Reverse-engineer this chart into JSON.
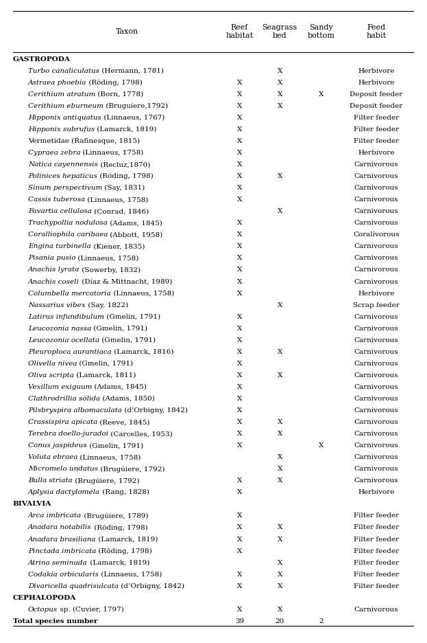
{
  "col_headers": [
    "Taxon",
    "Reef\nhabitat",
    "Seagrass\nbed",
    "Sandy\nbottom",
    "Feed\nhabit"
  ],
  "rows": [
    {
      "taxon": "GASTROPODA",
      "reef": "",
      "seagrass": "",
      "sandy": "",
      "feed": "",
      "section_header": true,
      "italic_part": "",
      "bold": true,
      "total_row": false
    },
    {
      "taxon": "Turbo canaliculatus (Hermann, 1781)",
      "italic_part": "Turbo canaliculatus",
      "bold": false,
      "reef": "",
      "seagrass": "X",
      "sandy": "",
      "feed": "Herbivore",
      "section_header": false,
      "total_row": false
    },
    {
      "taxon": "Astraea phoebia (Röding, 1798)",
      "italic_part": "Astraea phoebia",
      "bold": false,
      "reef": "X",
      "seagrass": "X",
      "sandy": "",
      "feed": "Herbivore",
      "section_header": false,
      "total_row": false
    },
    {
      "taxon": "Cerithium atratum (Born, 1778)",
      "italic_part": "Cerithium atratum",
      "bold": false,
      "reef": "X",
      "seagrass": "X",
      "sandy": "X",
      "feed": "Deposit feeder",
      "section_header": false,
      "total_row": false
    },
    {
      "taxon": "Cerithium eburneum (Bruguiere,1792)",
      "italic_part": "Cerithium eburneum",
      "bold": false,
      "reef": "X",
      "seagrass": "X",
      "sandy": "",
      "feed": "Deposit feeder",
      "section_header": false,
      "total_row": false
    },
    {
      "taxon": "Hipponix antiquatus (Linnaeus, 1767)",
      "italic_part": "Hipponix antiquatus",
      "bold": false,
      "reef": "X",
      "seagrass": "",
      "sandy": "",
      "feed": "Filter feeder",
      "section_header": false,
      "total_row": false
    },
    {
      "taxon": "Hipponix subrufus (Lamarck, 1819)",
      "italic_part": "Hipponix subrufus",
      "bold": false,
      "reef": "X",
      "seagrass": "",
      "sandy": "",
      "feed": "Filter feeder",
      "section_header": false,
      "total_row": false
    },
    {
      "taxon": "Vermetidae (Rafinesque, 1815)",
      "italic_part": "",
      "bold": false,
      "reef": "X",
      "seagrass": "",
      "sandy": "",
      "feed": "Filter feeder",
      "section_header": false,
      "total_row": false
    },
    {
      "taxon": "Cypraea zebra (Linnaeus, 1758)",
      "italic_part": "Cypraea zebra",
      "bold": false,
      "reef": "X",
      "seagrass": "",
      "sandy": "",
      "feed": "Herbivore",
      "section_header": false,
      "total_row": false
    },
    {
      "taxon": "Natica cayennensis (Recluz,1870)",
      "italic_part": "Natica cayennensis",
      "bold": false,
      "reef": "X",
      "seagrass": "",
      "sandy": "",
      "feed": "Carnivorous",
      "section_header": false,
      "total_row": false
    },
    {
      "taxon": "Polinices hepaticus (Roding, 1798)",
      "italic_part": "Polinices hepaticus",
      "bold": false,
      "reef": "X",
      "seagrass": "X",
      "sandy": "",
      "feed": "Carnivorous",
      "section_header": false,
      "total_row": false
    },
    {
      "taxon": "Sinum perspectivum (Say, 1831)",
      "italic_part": "Sinum perspectivum",
      "bold": false,
      "reef": "X",
      "seagrass": "",
      "sandy": "",
      "feed": "Carnivorous",
      "section_header": false,
      "total_row": false
    },
    {
      "taxon": "Cassis tuberosa (Linnaeus, 1758)",
      "italic_part": "Cassis tuberosa",
      "bold": false,
      "reef": "X",
      "seagrass": "",
      "sandy": "",
      "feed": "Carnivorous",
      "section_header": false,
      "total_row": false
    },
    {
      "taxon": "Favartia cellulosa (Conrad, 1846)",
      "italic_part": "Favartia cellulosa",
      "bold": false,
      "reef": "",
      "seagrass": "X",
      "sandy": "",
      "feed": "Carnivorous",
      "section_header": false,
      "total_row": false
    },
    {
      "taxon": "Trachypollia nodulosa (Adams, 1845)",
      "italic_part": "Trachypollia nodulosa",
      "bold": false,
      "reef": "X",
      "seagrass": "",
      "sandy": "",
      "feed": "Carnivorous",
      "section_header": false,
      "total_row": false
    },
    {
      "taxon": "Coralliophila caribaea (Abbott, 1958)",
      "italic_part": "Coralliophila caribaea",
      "bold": false,
      "reef": "X",
      "seagrass": "",
      "sandy": "",
      "feed": "Coralivorous",
      "section_header": false,
      "total_row": false
    },
    {
      "taxon": "Engina turbinella (Kiener, 1835)",
      "italic_part": "Engina turbinella",
      "bold": false,
      "reef": "X",
      "seagrass": "",
      "sandy": "",
      "feed": "Carnivorous",
      "section_header": false,
      "total_row": false
    },
    {
      "taxon": "Pisania pusio (Linnaeus, 1758)",
      "italic_part": "Pisania pusio",
      "bold": false,
      "reef": "X",
      "seagrass": "",
      "sandy": "",
      "feed": "Carnivorous",
      "section_header": false,
      "total_row": false
    },
    {
      "taxon": "Anachis lyrata (Sowerby, 1832)",
      "italic_part": "Anachis lyrata",
      "bold": false,
      "reef": "X",
      "seagrass": "",
      "sandy": "",
      "feed": "Carnivorous",
      "section_header": false,
      "total_row": false
    },
    {
      "taxon": "Anachis coseli (Díaz & Mittnacht, 1989)",
      "italic_part": "Anachis coseli",
      "bold": false,
      "reef": "X",
      "seagrass": "",
      "sandy": "",
      "feed": "Carnivorous",
      "section_header": false,
      "total_row": false
    },
    {
      "taxon": "Columbella mercatoria (Linnaeus, 1758)",
      "italic_part": "Columbella mercatoria",
      "bold": false,
      "reef": "X",
      "seagrass": "",
      "sandy": "",
      "feed": "Herbivore",
      "section_header": false,
      "total_row": false
    },
    {
      "taxon": "Nassarius vibex (Say, 1822)",
      "italic_part": "Nassarius vibex",
      "bold": false,
      "reef": "",
      "seagrass": "X",
      "sandy": "",
      "feed": "Scrap feeder",
      "section_header": false,
      "total_row": false
    },
    {
      "taxon": "Latirus infundibulum (Gmelin, 1791)",
      "italic_part": "Latirus infundibulum",
      "bold": false,
      "reef": "X",
      "seagrass": "",
      "sandy": "",
      "feed": "Carnivorous",
      "section_header": false,
      "total_row": false
    },
    {
      "taxon": "Leucozonia nassa (Gmelin, 1791)",
      "italic_part": "Leucozonia nassa",
      "bold": false,
      "reef": "X",
      "seagrass": "",
      "sandy": "",
      "feed": "Carnivorous",
      "section_header": false,
      "total_row": false
    },
    {
      "taxon": "Leucozonia ocellata (Gmelin, 1791)",
      "italic_part": "Leucozonia ocellata",
      "bold": false,
      "reef": "X",
      "seagrass": "",
      "sandy": "",
      "feed": "Carnivorous",
      "section_header": false,
      "total_row": false
    },
    {
      "taxon": "Pleuroploca aurantiaca (Lamarck, 1816)",
      "italic_part": "Pleuroploca aurantiaca",
      "bold": false,
      "reef": "X",
      "seagrass": "X",
      "sandy": "",
      "feed": "Carnivorous",
      "section_header": false,
      "total_row": false
    },
    {
      "taxon": "Olivella nivea (Gmelin, 1791)",
      "italic_part": "Olivella nivea",
      "bold": false,
      "reef": "X",
      "seagrass": "",
      "sandy": "",
      "feed": "Carnivorous",
      "section_header": false,
      "total_row": false
    },
    {
      "taxon": "Oliva scripta (Lamarck, 1811)",
      "italic_part": "Oliva scripta",
      "bold": false,
      "reef": "X",
      "seagrass": "X",
      "sandy": "",
      "feed": "Carnivorous",
      "section_header": false,
      "total_row": false
    },
    {
      "taxon": "Vexillum exiguum (Adams, 1845)",
      "italic_part": "Vexillum exiguum",
      "bold": false,
      "reef": "X",
      "seagrass": "",
      "sandy": "",
      "feed": "Carnivorous",
      "section_header": false,
      "total_row": false
    },
    {
      "taxon": "Clathrodrillia sólida (Adams, 1850)",
      "italic_part": "Clathrodrillia sólida",
      "bold": false,
      "reef": "X",
      "seagrass": "",
      "sandy": "",
      "feed": "Carnivorous",
      "section_header": false,
      "total_row": false
    },
    {
      "taxon": "Pilsbryspira albomaculata (d’Orbigny, 1842)",
      "italic_part": "Pilsbryspira albomaculata",
      "bold": false,
      "reef": "X",
      "seagrass": "",
      "sandy": "",
      "feed": "Carnivorous",
      "section_header": false,
      "total_row": false
    },
    {
      "taxon": "Crassispira apicata (Reeve, 1845)",
      "italic_part": "Crassispira apicata",
      "bold": false,
      "reef": "X",
      "seagrass": "X",
      "sandy": "",
      "feed": "Carnivorous",
      "section_header": false,
      "total_row": false
    },
    {
      "taxon": "Terebra doello-juradoi (Carcelles, 1953)",
      "italic_part": "Terebra doello-juradoi",
      "bold": false,
      "reef": "X",
      "seagrass": "X",
      "sandy": "",
      "feed": "Carnivorous",
      "section_header": false,
      "total_row": false
    },
    {
      "taxon": "Conus jaspideus (Gmelin, 1791)",
      "italic_part": "Conus jaspideus",
      "bold": false,
      "reef": "X",
      "seagrass": "",
      "sandy": "X",
      "feed": "Carnivorous",
      "section_header": false,
      "total_row": false
    },
    {
      "taxon": "Voluta ebraea (Linnaeus, 1758)",
      "italic_part": "Voluta ebraea",
      "bold": false,
      "reef": "",
      "seagrass": "X",
      "sandy": "",
      "feed": "Carnivorous",
      "section_header": false,
      "total_row": false
    },
    {
      "taxon": "Micromelo undatus (Brugúiere, 1792)",
      "italic_part": "Micromelo undatus",
      "bold": false,
      "reef": "",
      "seagrass": "X",
      "sandy": "",
      "feed": "Carnivorous",
      "section_header": false,
      "total_row": false
    },
    {
      "taxon": "Bulla striata (Brugúiere, 1792)",
      "italic_part": "Bulla striata",
      "bold": false,
      "reef": "X",
      "seagrass": "X",
      "sandy": "",
      "feed": "Carnivorous",
      "section_header": false,
      "total_row": false
    },
    {
      "taxon": "Aplysia dactylomela (Rang, 1828)",
      "italic_part": "Aplysia dactylomela",
      "bold": false,
      "reef": "X",
      "seagrass": "",
      "sandy": "",
      "feed": "Herbivore",
      "section_header": false,
      "total_row": false
    },
    {
      "taxon": "BIVALVIA",
      "reef": "",
      "seagrass": "",
      "sandy": "",
      "feed": "",
      "section_header": true,
      "italic_part": "",
      "bold": true,
      "total_row": false
    },
    {
      "taxon": "Arca imbricata (Brugúiere, 1789)",
      "italic_part": "Arca imbricata",
      "bold": false,
      "reef": "X",
      "seagrass": "",
      "sandy": "",
      "feed": "Filter feeder",
      "section_header": false,
      "total_row": false
    },
    {
      "taxon": "Anadara notabilis (Röding, 1798)",
      "italic_part": "Anadara notabilis",
      "bold": false,
      "reef": "X",
      "seagrass": "X",
      "sandy": "",
      "feed": "Filter feeder",
      "section_header": false,
      "total_row": false
    },
    {
      "taxon": "Anadara brasiliana (Lamarck, 1819)",
      "italic_part": "Anadara brasiliana",
      "bold": false,
      "reef": "X",
      "seagrass": "X",
      "sandy": "",
      "feed": "Filter feeder",
      "section_header": false,
      "total_row": false
    },
    {
      "taxon": "Pinctada imbricata (Röding, 1798)",
      "italic_part": "Pinctada imbricata",
      "bold": false,
      "reef": "X",
      "seagrass": "",
      "sandy": "",
      "feed": "Filter feeder",
      "section_header": false,
      "total_row": false
    },
    {
      "taxon": "Atrina seminuda (Lamarck, 1819)",
      "italic_part": "Atrina seminuda",
      "bold": false,
      "reef": "",
      "seagrass": "X",
      "sandy": "",
      "feed": "Filter feeder",
      "section_header": false,
      "total_row": false
    },
    {
      "taxon": "Codakia orbicularis (Linnaeus, 1758)",
      "italic_part": "Codakia orbicularis",
      "bold": false,
      "reef": "X",
      "seagrass": "X",
      "sandy": "",
      "feed": "Filter feeder",
      "section_header": false,
      "total_row": false
    },
    {
      "taxon": "Divaricella quadrisulcata (d’Orbigny, 1842)",
      "italic_part": "Divaricella quadrisulcata",
      "bold": false,
      "reef": "X",
      "seagrass": "X",
      "sandy": "",
      "feed": "Filter feeder",
      "section_header": false,
      "total_row": false
    },
    {
      "taxon": "CEPHALOPODA",
      "reef": "",
      "seagrass": "",
      "sandy": "",
      "feed": "",
      "section_header": true,
      "italic_part": "",
      "bold": true,
      "total_row": false
    },
    {
      "taxon": "Octopus sp. (Cuvier, 1797)",
      "italic_part": "Octopus",
      "bold": false,
      "reef": "X",
      "seagrass": "X",
      "sandy": "",
      "feed": "Carnivorous",
      "section_header": false,
      "total_row": false
    },
    {
      "taxon": "Total species number",
      "italic_part": "",
      "bold": true,
      "reef": "39",
      "seagrass": "20",
      "sandy": "2",
      "feed": "",
      "section_header": false,
      "total_row": true
    }
  ],
  "bg_color": "#ffffff",
  "text_color": "#000000",
  "fontsize": 7.5,
  "header_fontsize": 8.0
}
